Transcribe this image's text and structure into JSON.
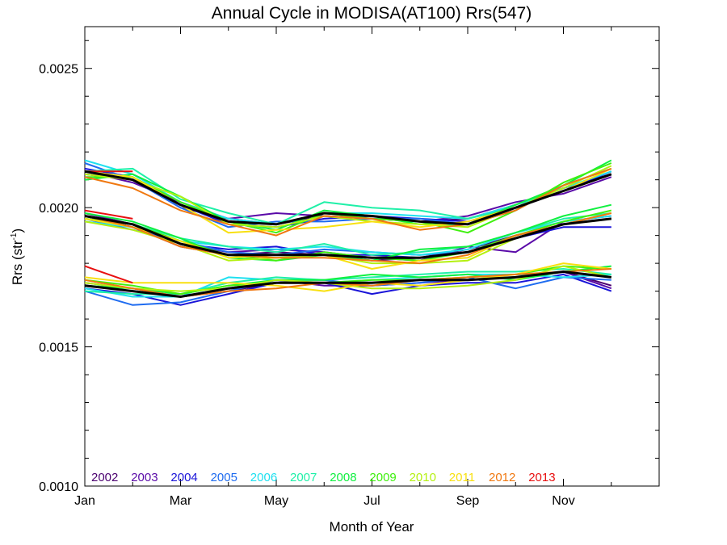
{
  "chart_data": {
    "type": "line",
    "title": "Annual Cycle in MODISA(AT100) Rrs(547)",
    "xlabel": "Month of Year",
    "ylabel": "Rrs (str",
    "ylabel_sup": "-1",
    "ylabel_close": ")",
    "xlim": [
      1,
      13
    ],
    "ylim": [
      0.001,
      0.00265
    ],
    "x_ticks": [
      {
        "value": 1,
        "label": "Jan"
      },
      {
        "value": 3,
        "label": "Mar"
      },
      {
        "value": 5,
        "label": "May"
      },
      {
        "value": 7,
        "label": "Jul"
      },
      {
        "value": 9,
        "label": "Sep"
      },
      {
        "value": 11,
        "label": "Nov"
      }
    ],
    "y_ticks": [
      {
        "value": 0.001,
        "label": "0.0010"
      },
      {
        "value": 0.0015,
        "label": "0.0015"
      },
      {
        "value": 0.002,
        "label": "0.0020"
      },
      {
        "value": 0.0025,
        "label": "0.0025"
      }
    ],
    "grid": false,
    "legend_position": "bottom-left, inside plot",
    "x": [
      1,
      2,
      3,
      4,
      5,
      6,
      7,
      8,
      9,
      10,
      11,
      12
    ],
    "series": [
      {
        "name": "2002",
        "color": "#4b0070",
        "group": "high",
        "values": [
          0.00212,
          0.0021,
          0.002,
          0.00196,
          0.00194,
          0.00197,
          0.00196,
          0.00195,
          0.00196,
          0.00201,
          0.00207,
          0.00212
        ]
      },
      {
        "name": "2003",
        "color": "#5a0aa8",
        "group": "high",
        "values": [
          0.00213,
          0.00209,
          0.00202,
          0.00196,
          0.00198,
          0.00197,
          0.00196,
          0.00195,
          0.00197,
          0.00202,
          0.00205,
          0.00211
        ]
      },
      {
        "name": "2004",
        "color": "#1a14d8",
        "group": "high",
        "values": [
          0.00214,
          0.00211,
          0.00201,
          0.00194,
          0.00193,
          0.00196,
          0.00197,
          0.00196,
          0.00195,
          0.002,
          0.00206,
          0.00213
        ]
      },
      {
        "name": "2005",
        "color": "#1f6cf0",
        "group": "high",
        "values": [
          0.00216,
          0.0021,
          0.002,
          0.00193,
          0.00195,
          0.00195,
          0.00196,
          0.00196,
          0.00194,
          0.00199,
          0.00208,
          0.00214
        ]
      },
      {
        "name": "2006",
        "color": "#1fe0f0",
        "group": "high",
        "values": [
          0.00217,
          0.00212,
          0.00202,
          0.00196,
          0.00194,
          0.00198,
          0.00198,
          0.00197,
          0.00196,
          0.00201,
          0.00207,
          0.00213
        ]
      },
      {
        "name": "2007",
        "color": "#1ff0a8",
        "group": "high",
        "values": [
          0.00213,
          0.00214,
          0.00203,
          0.00198,
          0.00194,
          0.00202,
          0.002,
          0.00199,
          0.00196,
          0.002,
          0.00208,
          0.00214
        ]
      },
      {
        "name": "2008",
        "color": "#10f040",
        "group": "high",
        "values": [
          0.0021,
          0.00212,
          0.00204,
          0.00195,
          0.00192,
          0.00199,
          0.00197,
          0.00194,
          0.00194,
          0.00201,
          0.00208,
          0.00217
        ]
      },
      {
        "name": "2009",
        "color": "#40f010",
        "group": "high",
        "values": [
          0.00211,
          0.00211,
          0.00202,
          0.00195,
          0.00191,
          0.00198,
          0.00196,
          0.00195,
          0.00191,
          0.00199,
          0.00209,
          0.00216
        ]
      },
      {
        "name": "2010",
        "color": "#b4f010",
        "group": "high",
        "values": [
          0.00212,
          0.0021,
          0.00204,
          0.00194,
          0.00193,
          0.00197,
          0.00195,
          0.00194,
          0.00193,
          0.002,
          0.00207,
          0.00215
        ]
      },
      {
        "name": "2011",
        "color": "#f8e010",
        "group": "high",
        "values": [
          0.00213,
          0.00211,
          0.00201,
          0.00191,
          0.00192,
          0.00193,
          0.00195,
          0.00193,
          0.00195,
          0.002,
          0.00206,
          0.00214
        ]
      },
      {
        "name": "2012",
        "color": "#f07810",
        "group": "high",
        "values": [
          0.00211,
          0.00207,
          0.00199,
          0.00194,
          0.0019,
          0.00197,
          0.00196,
          0.00192,
          0.00194,
          0.00199,
          0.00208,
          0.00214
        ]
      },
      {
        "name": "2013",
        "color": "#e81010",
        "group": "high",
        "values": [
          0.00213,
          0.00213,
          null,
          null,
          null,
          null,
          null,
          null,
          null,
          null,
          null,
          null
        ]
      },
      {
        "name": "2002",
        "color": "#4b0070",
        "group": "mid",
        "values": [
          0.00197,
          0.00193,
          0.00186,
          0.00183,
          0.00184,
          0.00183,
          0.00181,
          0.00182,
          0.00185,
          0.0019,
          0.00194,
          0.00196
        ]
      },
      {
        "name": "2003",
        "color": "#5a0aa8",
        "group": "mid",
        "values": [
          0.00198,
          0.00194,
          0.00187,
          0.00184,
          0.00185,
          0.00184,
          0.00182,
          0.00181,
          0.00186,
          0.00184,
          0.00195,
          0.00197
        ]
      },
      {
        "name": "2004",
        "color": "#1a14d8",
        "group": "mid",
        "values": [
          0.00197,
          0.00193,
          0.00187,
          0.00185,
          0.00186,
          0.00183,
          0.00183,
          0.00182,
          0.00184,
          0.00189,
          0.00193,
          0.00193
        ]
      },
      {
        "name": "2005",
        "color": "#1f6cf0",
        "group": "mid",
        "values": [
          0.00196,
          0.00192,
          0.00188,
          0.00184,
          0.00183,
          0.00185,
          0.00184,
          0.00183,
          0.00184,
          0.0019,
          0.00194,
          0.00196
        ]
      },
      {
        "name": "2006",
        "color": "#1fe0f0",
        "group": "mid",
        "values": [
          0.00195,
          0.00193,
          0.00188,
          0.00186,
          0.00185,
          0.00186,
          0.00184,
          0.00183,
          0.00185,
          0.00191,
          0.00195,
          0.00197
        ]
      },
      {
        "name": "2007",
        "color": "#1ff0a8",
        "group": "mid",
        "values": [
          0.00196,
          0.00194,
          0.00189,
          0.00186,
          0.00184,
          0.00187,
          0.00183,
          0.00184,
          0.00186,
          0.00191,
          0.00196,
          0.00198
        ]
      },
      {
        "name": "2008",
        "color": "#10f040",
        "group": "mid",
        "values": [
          0.00198,
          0.00195,
          0.00189,
          0.00182,
          0.00181,
          0.00183,
          0.00181,
          0.00185,
          0.00186,
          0.00191,
          0.00197,
          0.00201
        ]
      },
      {
        "name": "2009",
        "color": "#40f010",
        "group": "mid",
        "values": [
          0.00196,
          0.00194,
          0.00188,
          0.00183,
          0.00181,
          0.00184,
          0.00182,
          0.00181,
          0.00184,
          0.0019,
          0.00195,
          0.00199
        ]
      },
      {
        "name": "2010",
        "color": "#b4f010",
        "group": "mid",
        "values": [
          0.00195,
          0.00192,
          0.00187,
          0.00181,
          0.00182,
          0.00183,
          0.0018,
          0.0018,
          0.00181,
          0.00189,
          0.00194,
          0.00196
        ]
      },
      {
        "name": "2011",
        "color": "#f8e010",
        "group": "mid",
        "values": [
          0.00196,
          0.00193,
          0.00188,
          0.00182,
          0.00183,
          0.00183,
          0.00178,
          0.00181,
          0.00182,
          0.0019,
          0.00194,
          0.00198
        ]
      },
      {
        "name": "2012",
        "color": "#f07810",
        "group": "mid",
        "values": [
          0.00197,
          0.00193,
          0.00186,
          0.00183,
          0.00182,
          0.00182,
          0.00181,
          0.0018,
          0.00183,
          0.0019,
          0.00194,
          0.00198
        ]
      },
      {
        "name": "2013",
        "color": "#e81010",
        "group": "mid",
        "values": [
          0.00199,
          0.00196,
          null,
          null,
          null,
          null,
          null,
          null,
          null,
          null,
          null,
          null
        ]
      },
      {
        "name": "2002",
        "color": "#4b0070",
        "group": "low",
        "values": [
          0.00172,
          0.0017,
          0.00168,
          0.0017,
          0.00173,
          0.00173,
          0.00173,
          0.00174,
          0.00174,
          0.00175,
          0.00177,
          0.00172
        ]
      },
      {
        "name": "2003",
        "color": "#5a0aa8",
        "group": "low",
        "values": [
          0.00173,
          0.00171,
          0.00168,
          0.00171,
          0.00174,
          0.00172,
          0.00172,
          0.00173,
          0.00174,
          0.00175,
          0.00177,
          0.00171
        ]
      },
      {
        "name": "2004",
        "color": "#1a14d8",
        "group": "low",
        "values": [
          0.00171,
          0.00169,
          0.00165,
          0.00169,
          0.00173,
          0.00173,
          0.00169,
          0.00172,
          0.00173,
          0.00173,
          0.00176,
          0.0017
        ]
      },
      {
        "name": "2005",
        "color": "#1f6cf0",
        "group": "low",
        "values": [
          0.0017,
          0.00165,
          0.00166,
          0.0017,
          0.00174,
          0.00174,
          0.00172,
          0.00173,
          0.00175,
          0.00171,
          0.00175,
          0.00174
        ]
      },
      {
        "name": "2006",
        "color": "#1fe0f0",
        "group": "low",
        "values": [
          0.00171,
          0.00168,
          0.00168,
          0.00175,
          0.00174,
          0.00173,
          0.00174,
          0.00175,
          0.00176,
          0.00176,
          0.00175,
          0.00176
        ]
      },
      {
        "name": "2007",
        "color": "#1ff0a8",
        "group": "low",
        "values": [
          0.0017,
          0.00169,
          0.00169,
          0.00173,
          0.00175,
          0.00174,
          0.00175,
          0.00176,
          0.00177,
          0.00177,
          0.00178,
          0.00176
        ]
      },
      {
        "name": "2008",
        "color": "#10f040",
        "group": "low",
        "values": [
          0.00172,
          0.00171,
          0.00169,
          0.00172,
          0.00174,
          0.00174,
          0.00176,
          0.00175,
          0.00176,
          0.00174,
          0.00177,
          0.00179
        ]
      },
      {
        "name": "2009",
        "color": "#40f010",
        "group": "low",
        "values": [
          0.00174,
          0.00172,
          0.00169,
          0.00172,
          0.00173,
          0.00173,
          0.00174,
          0.00174,
          0.00175,
          0.00176,
          0.00179,
          0.00178
        ]
      },
      {
        "name": "2010",
        "color": "#b4f010",
        "group": "low",
        "values": [
          0.00173,
          0.00171,
          0.0017,
          0.00171,
          0.00174,
          0.00173,
          0.00171,
          0.00171,
          0.00172,
          0.00174,
          0.00179,
          0.00175
        ]
      },
      {
        "name": "2011",
        "color": "#f8e010",
        "group": "low",
        "values": [
          0.00175,
          0.00173,
          0.00173,
          0.00173,
          0.00172,
          0.0017,
          0.00173,
          0.00172,
          0.00174,
          0.00176,
          0.0018,
          0.00178
        ]
      },
      {
        "name": "2012",
        "color": "#f07810",
        "group": "low",
        "values": [
          0.00174,
          0.00171,
          0.00168,
          0.0017,
          0.00171,
          0.00173,
          0.00172,
          0.00174,
          0.00175,
          0.00176,
          0.00177,
          0.00178
        ]
      },
      {
        "name": "2013",
        "color": "#e81010",
        "group": "low",
        "values": [
          0.00179,
          0.00173,
          null,
          null,
          null,
          null,
          null,
          null,
          null,
          null,
          null,
          null
        ]
      }
    ],
    "mean_series": [
      {
        "color": "#000000",
        "group": "high",
        "values": [
          0.00213,
          0.0021,
          0.00201,
          0.00195,
          0.00194,
          0.00198,
          0.00197,
          0.00195,
          0.00194,
          0.002,
          0.00206,
          0.00212
        ]
      },
      {
        "color": "#000000",
        "group": "mid",
        "values": [
          0.00197,
          0.00194,
          0.00187,
          0.00183,
          0.00183,
          0.00183,
          0.00182,
          0.00182,
          0.00184,
          0.00189,
          0.00194,
          0.00196
        ]
      },
      {
        "color": "#000000",
        "group": "low",
        "values": [
          0.00172,
          0.0017,
          0.00168,
          0.00171,
          0.00173,
          0.00173,
          0.00173,
          0.00174,
          0.00174,
          0.00175,
          0.00177,
          0.00175
        ]
      }
    ],
    "legend": [
      {
        "label": "2002",
        "color": "#4b0070"
      },
      {
        "label": "2003",
        "color": "#5a0aa8"
      },
      {
        "label": "2004",
        "color": "#1a14d8"
      },
      {
        "label": "2005",
        "color": "#1f6cf0"
      },
      {
        "label": "2006",
        "color": "#1fe0f0"
      },
      {
        "label": "2007",
        "color": "#1ff0a8"
      },
      {
        "label": "2008",
        "color": "#10f040"
      },
      {
        "label": "2009",
        "color": "#40f010"
      },
      {
        "label": "2010",
        "color": "#b4f010"
      },
      {
        "label": "2011",
        "color": "#f8e010"
      },
      {
        "label": "2012",
        "color": "#f07810"
      },
      {
        "label": "2013",
        "color": "#e81010"
      }
    ]
  }
}
